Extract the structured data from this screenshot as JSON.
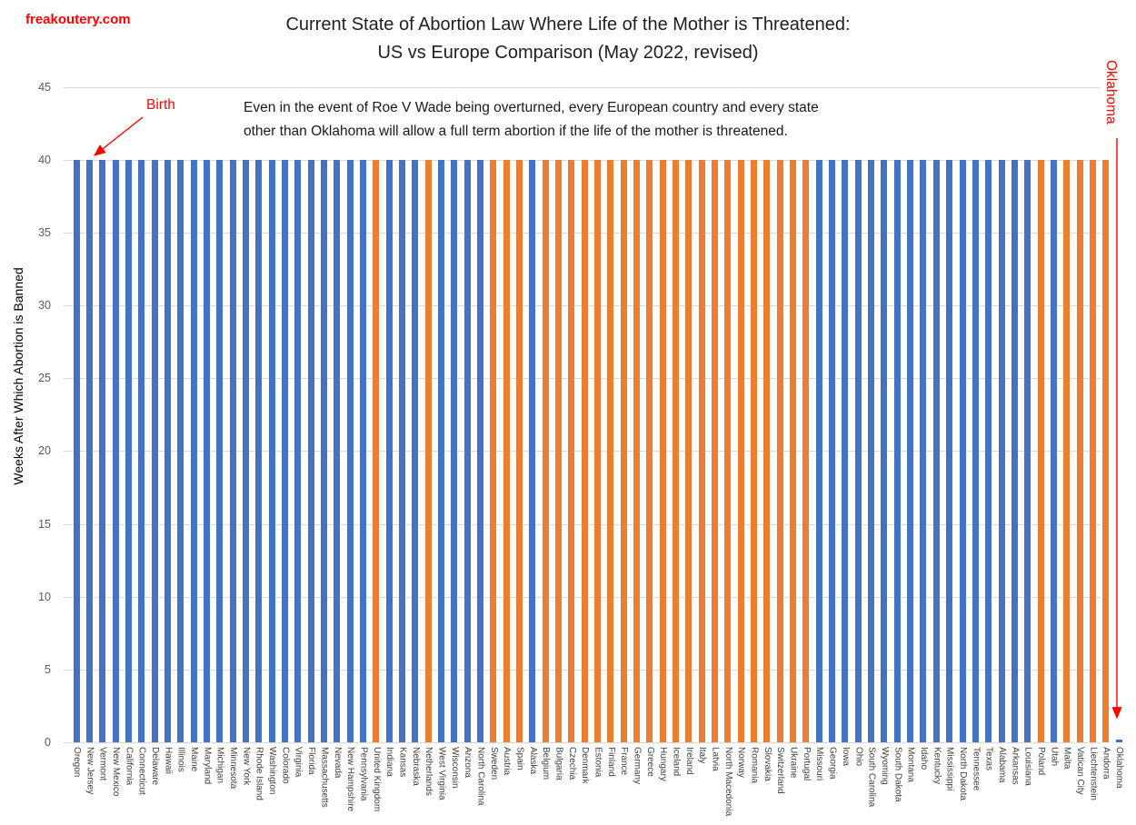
{
  "header": {
    "site_label": "freakoutery.com",
    "title_line1": "Current State of Abortion Law Where Life of the Mother is Threatened:",
    "title_line2": "US vs Europe Comparison (May 2022, revised)"
  },
  "annotations": {
    "body_line1": "Even in the event of Roe V Wade being overturned, every European country and every state",
    "body_line2": "other than Oklahoma will allow a full term abortion if the life of the mother is threatened.",
    "birth_label": "Birth",
    "oklahoma_label": "Oklahoma",
    "annotation_color": "#ff0000"
  },
  "colors": {
    "us_bar": "#4472C4",
    "europe_bar": "#ED7D31",
    "gridline": "#d9d9d9",
    "tick_text": "#595959",
    "x_label_text": "#3f3f3f"
  },
  "chart_data": {
    "type": "bar",
    "title": "Current State of Abortion Law Where Life of the Mother is Threatened: US vs Europe Comparison (May 2022, revised)",
    "xlabel": "",
    "ylabel": "Weeks After Which Abortion is Banned",
    "ylim": [
      0,
      45
    ],
    "yticks": [
      0,
      5,
      10,
      15,
      20,
      25,
      30,
      35,
      40,
      45
    ],
    "grid": true,
    "legend": false,
    "series_colors": {
      "US": "#4472C4",
      "Europe": "#ED7D31"
    },
    "bars": [
      {
        "label": "Oregon",
        "region": "US",
        "value": 40
      },
      {
        "label": "New Jersey",
        "region": "US",
        "value": 40
      },
      {
        "label": "Vermont",
        "region": "US",
        "value": 40
      },
      {
        "label": "New Mexico",
        "region": "US",
        "value": 40
      },
      {
        "label": "California",
        "region": "US",
        "value": 40
      },
      {
        "label": "Connecticut",
        "region": "US",
        "value": 40
      },
      {
        "label": "Delaware",
        "region": "US",
        "value": 40
      },
      {
        "label": "Hawaii",
        "region": "US",
        "value": 40
      },
      {
        "label": "Illinois",
        "region": "US",
        "value": 40
      },
      {
        "label": "Maine",
        "region": "US",
        "value": 40
      },
      {
        "label": "Maryland",
        "region": "US",
        "value": 40
      },
      {
        "label": "Michigan",
        "region": "US",
        "value": 40
      },
      {
        "label": "Minnesota",
        "region": "US",
        "value": 40
      },
      {
        "label": "New York",
        "region": "US",
        "value": 40
      },
      {
        "label": "Rhode Island",
        "region": "US",
        "value": 40
      },
      {
        "label": "Washington",
        "region": "US",
        "value": 40
      },
      {
        "label": "Colorado",
        "region": "US",
        "value": 40
      },
      {
        "label": "Virginia",
        "region": "US",
        "value": 40
      },
      {
        "label": "Florida",
        "region": "US",
        "value": 40
      },
      {
        "label": "Massachusetts",
        "region": "US",
        "value": 40
      },
      {
        "label": "Nevada",
        "region": "US",
        "value": 40
      },
      {
        "label": "New Hampshire",
        "region": "US",
        "value": 40
      },
      {
        "label": "Pennsylvania",
        "region": "US",
        "value": 40
      },
      {
        "label": "United Kingdom",
        "region": "Europe",
        "value": 40
      },
      {
        "label": "Indiana",
        "region": "US",
        "value": 40
      },
      {
        "label": "Kansas",
        "region": "US",
        "value": 40
      },
      {
        "label": "Nebraska",
        "region": "US",
        "value": 40
      },
      {
        "label": "Netherlands",
        "region": "Europe",
        "value": 40
      },
      {
        "label": "West Virginia",
        "region": "US",
        "value": 40
      },
      {
        "label": "Wisconsin",
        "region": "US",
        "value": 40
      },
      {
        "label": "Arizona",
        "region": "US",
        "value": 40
      },
      {
        "label": "North Carolina",
        "region": "US",
        "value": 40
      },
      {
        "label": "Sweden",
        "region": "Europe",
        "value": 40
      },
      {
        "label": "Austria",
        "region": "Europe",
        "value": 40
      },
      {
        "label": "Spain",
        "region": "Europe",
        "value": 40
      },
      {
        "label": "Alaska",
        "region": "US",
        "value": 40
      },
      {
        "label": "Belgium",
        "region": "Europe",
        "value": 40
      },
      {
        "label": "Bulgaria",
        "region": "Europe",
        "value": 40
      },
      {
        "label": "Czechia",
        "region": "Europe",
        "value": 40
      },
      {
        "label": "Denmark",
        "region": "Europe",
        "value": 40
      },
      {
        "label": "Estonia",
        "region": "Europe",
        "value": 40
      },
      {
        "label": "Finland",
        "region": "Europe",
        "value": 40
      },
      {
        "label": "France",
        "region": "Europe",
        "value": 40
      },
      {
        "label": "Germany",
        "region": "Europe",
        "value": 40
      },
      {
        "label": "Greece",
        "region": "Europe",
        "value": 40
      },
      {
        "label": "Hungary",
        "region": "Europe",
        "value": 40
      },
      {
        "label": "Iceland",
        "region": "Europe",
        "value": 40
      },
      {
        "label": "Ireland",
        "region": "Europe",
        "value": 40
      },
      {
        "label": "Italy",
        "region": "Europe",
        "value": 40
      },
      {
        "label": "Latvia",
        "region": "Europe",
        "value": 40
      },
      {
        "label": "North Macedonia",
        "region": "Europe",
        "value": 40
      },
      {
        "label": "Norway",
        "region": "Europe",
        "value": 40
      },
      {
        "label": "Romania",
        "region": "Europe",
        "value": 40
      },
      {
        "label": "Slovakia",
        "region": "Europe",
        "value": 40
      },
      {
        "label": "Switzerland",
        "region": "Europe",
        "value": 40
      },
      {
        "label": "Ukraine",
        "region": "Europe",
        "value": 40
      },
      {
        "label": "Portugal",
        "region": "Europe",
        "value": 40
      },
      {
        "label": "Missouri",
        "region": "US",
        "value": 40
      },
      {
        "label": "Georgia",
        "region": "US",
        "value": 40
      },
      {
        "label": "Iowa",
        "region": "US",
        "value": 40
      },
      {
        "label": "Ohio",
        "region": "US",
        "value": 40
      },
      {
        "label": "South Carolina",
        "region": "US",
        "value": 40
      },
      {
        "label": "Wyoming",
        "region": "US",
        "value": 40
      },
      {
        "label": "South Dakota",
        "region": "US",
        "value": 40
      },
      {
        "label": "Montana",
        "region": "US",
        "value": 40
      },
      {
        "label": "Idaho",
        "region": "US",
        "value": 40
      },
      {
        "label": "Kentucky",
        "region": "US",
        "value": 40
      },
      {
        "label": "Mississippi",
        "region": "US",
        "value": 40
      },
      {
        "label": "North Dakota",
        "region": "US",
        "value": 40
      },
      {
        "label": "Tennessee",
        "region": "US",
        "value": 40
      },
      {
        "label": "Texas",
        "region": "US",
        "value": 40
      },
      {
        "label": "Alabama",
        "region": "US",
        "value": 40
      },
      {
        "label": "Arkansas",
        "region": "US",
        "value": 40
      },
      {
        "label": "Louisiana",
        "region": "US",
        "value": 40
      },
      {
        "label": "Poland",
        "region": "Europe",
        "value": 40
      },
      {
        "label": "Utah",
        "region": "US",
        "value": 40
      },
      {
        "label": "Malta",
        "region": "Europe",
        "value": 40
      },
      {
        "label": "Vatican City",
        "region": "Europe",
        "value": 40
      },
      {
        "label": "Liechtenstein",
        "region": "Europe",
        "value": 40
      },
      {
        "label": "Andorra",
        "region": "Europe",
        "value": 40
      },
      {
        "label": "Oklahoma",
        "region": "US",
        "value": 0.2
      }
    ]
  }
}
